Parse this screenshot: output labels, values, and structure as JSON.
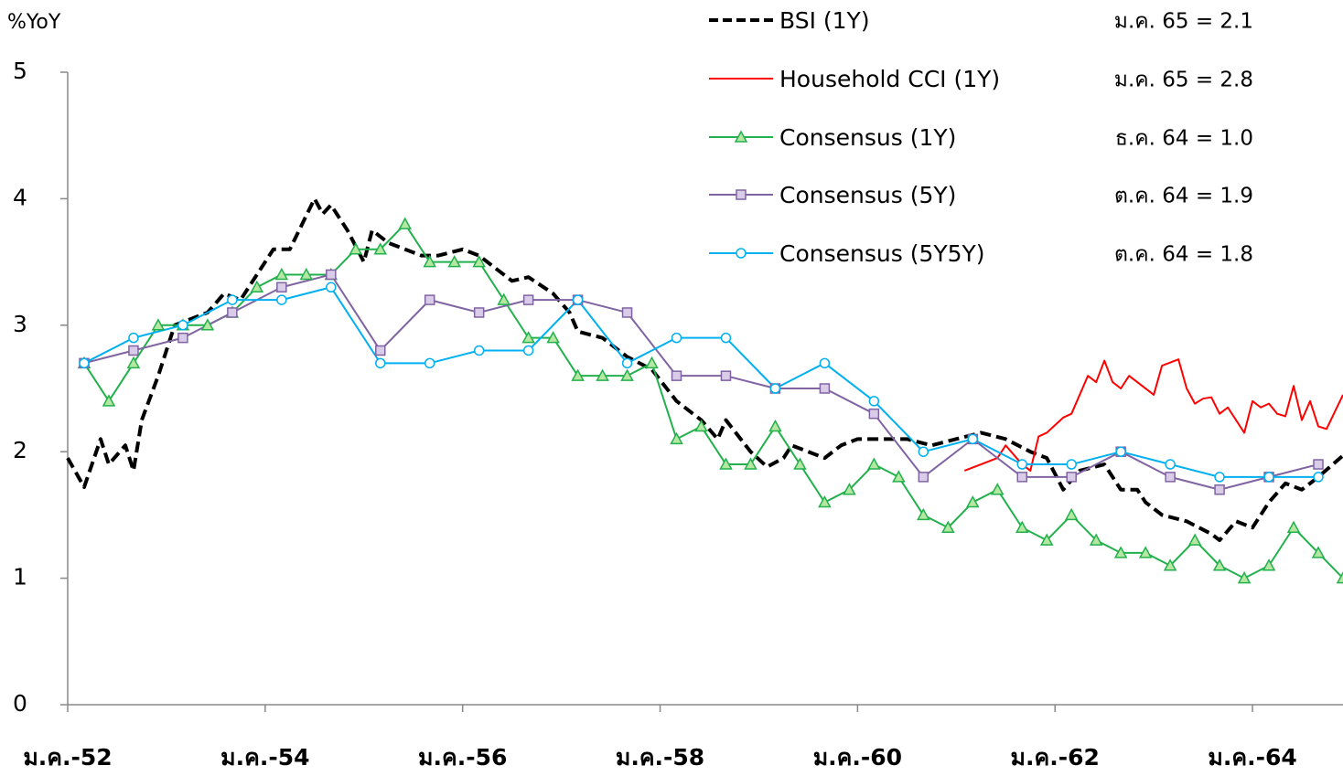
{
  "chart_data": {
    "type": "line",
    "y_axis_label": "%YoY",
    "xlim": [
      0,
      155
    ],
    "xticks": [
      {
        "value": 0,
        "label": "ม.ค.-52"
      },
      {
        "value": 24,
        "label": "ม.ค.-54"
      },
      {
        "value": 48,
        "label": "ม.ค.-56"
      },
      {
        "value": 72,
        "label": "ม.ค.-58"
      },
      {
        "value": 96,
        "label": "ม.ค.-60"
      },
      {
        "value": 120,
        "label": "ม.ค.-62"
      },
      {
        "value": 144,
        "label": "ม.ค.-64"
      }
    ],
    "ylim": [
      0,
      5
    ],
    "yticks": [
      0,
      1,
      2,
      3,
      4,
      5
    ],
    "grid": false,
    "legend": "top-right",
    "series": [
      {
        "name": "BSI (1Y)",
        "color": "#000000",
        "dash": true,
        "marker": "none",
        "annotation": "ม.ค. 65 = 2.1",
        "annotation_color": "#a0a0a0",
        "x": [
          0,
          2,
          4,
          5,
          7,
          8,
          9,
          11,
          13,
          17,
          19,
          21,
          23,
          25,
          27,
          30,
          31,
          32,
          34,
          36,
          37,
          39,
          41,
          43,
          45,
          48,
          50,
          52,
          54,
          56,
          59,
          61,
          62,
          65,
          68,
          71,
          74,
          77,
          79,
          80,
          83,
          85,
          87,
          88,
          90,
          92,
          94,
          96,
          99,
          102,
          105,
          108,
          111,
          114,
          117,
          119,
          121,
          123,
          126,
          128,
          130,
          131,
          133,
          136,
          139,
          140,
          142,
          144,
          146,
          148,
          150,
          152,
          155
        ],
        "values": [
          1.95,
          1.72,
          2.1,
          1.9,
          2.05,
          1.85,
          2.25,
          2.6,
          3.0,
          3.1,
          3.25,
          3.2,
          3.4,
          3.6,
          3.6,
          4.0,
          3.88,
          3.95,
          3.75,
          3.5,
          3.75,
          3.65,
          3.6,
          3.55,
          3.55,
          3.6,
          3.55,
          3.45,
          3.35,
          3.38,
          3.25,
          3.1,
          2.95,
          2.9,
          2.75,
          2.65,
          2.4,
          2.25,
          2.1,
          2.25,
          2.0,
          1.88,
          1.95,
          2.05,
          2.0,
          1.95,
          2.05,
          2.1,
          2.1,
          2.1,
          2.05,
          2.1,
          2.15,
          2.1,
          2.0,
          1.95,
          1.7,
          1.85,
          1.9,
          1.7,
          1.7,
          1.6,
          1.5,
          1.45,
          1.35,
          1.3,
          1.45,
          1.4,
          1.6,
          1.75,
          1.7,
          1.8,
          1.97
        ]
      },
      {
        "name": "Household CCI (1Y)",
        "color": "#ff0000",
        "dash": false,
        "marker": "none",
        "annotation": "ม.ค. 65 = 2.8",
        "annotation_color": "#ff0000",
        "x": [
          109,
          111,
          113,
          114,
          116,
          117,
          118,
          119,
          121,
          122,
          124,
          125,
          126,
          127,
          128,
          129,
          130,
          132,
          133,
          135,
          136,
          137,
          138,
          139,
          140,
          141,
          143,
          144,
          145,
          146,
          147,
          148,
          149,
          150,
          151,
          152,
          153,
          155
        ],
        "values": [
          1.85,
          1.9,
          1.95,
          2.05,
          1.9,
          1.85,
          2.12,
          2.15,
          2.27,
          2.3,
          2.6,
          2.55,
          2.72,
          2.55,
          2.5,
          2.6,
          2.55,
          2.45,
          2.68,
          2.73,
          2.5,
          2.38,
          2.42,
          2.43,
          2.3,
          2.35,
          2.15,
          2.4,
          2.35,
          2.38,
          2.3,
          2.28,
          2.52,
          2.25,
          2.4,
          2.2,
          2.18,
          2.45
        ]
      },
      {
        "name": "Consensus (1Y)",
        "color": "#22b14c",
        "marker_fill": "#b5e6a2",
        "dash": false,
        "marker": "triangle",
        "annotation": "ธ.ค. 64 = 1.0",
        "annotation_color": "#22b14c",
        "x": [
          2,
          5,
          8,
          11,
          14,
          17,
          20,
          23,
          26,
          29,
          32,
          35,
          38,
          41,
          44,
          47,
          50,
          53,
          56,
          59,
          62,
          65,
          68,
          71,
          74,
          77,
          80,
          83,
          86,
          89,
          92,
          95,
          98,
          101,
          104,
          107,
          110,
          113,
          116,
          119,
          122,
          125,
          128,
          131,
          134,
          137,
          140,
          143,
          146,
          149,
          152,
          155
        ],
        "values": [
          2.7,
          2.4,
          2.7,
          3.0,
          3.0,
          3.0,
          3.1,
          3.3,
          3.4,
          3.4,
          3.4,
          3.6,
          3.6,
          3.8,
          3.5,
          3.5,
          3.5,
          3.2,
          2.9,
          2.9,
          2.6,
          2.6,
          2.6,
          2.7,
          2.1,
          2.2,
          1.9,
          1.9,
          2.2,
          1.9,
          1.6,
          1.7,
          1.9,
          1.8,
          1.5,
          1.4,
          1.6,
          1.7,
          1.4,
          1.3,
          1.5,
          1.3,
          1.2,
          1.2,
          1.1,
          1.3,
          1.1,
          1.0,
          1.1,
          1.4,
          1.2,
          1.0
        ]
      },
      {
        "name": "Consensus (5Y)",
        "color": "#8064a2",
        "marker_fill": "#d9cce8",
        "dash": false,
        "marker": "square",
        "annotation": "ต.ค. 64 = 1.9",
        "annotation_color": "#7030a0",
        "x": [
          2,
          8,
          14,
          20,
          26,
          32,
          38,
          44,
          50,
          56,
          62,
          68,
          74,
          80,
          86,
          92,
          98,
          104,
          110,
          116,
          122,
          128,
          134,
          140,
          146,
          152
        ],
        "values": [
          2.7,
          2.8,
          2.9,
          3.1,
          3.3,
          3.4,
          2.8,
          3.2,
          3.1,
          3.2,
          3.2,
          3.1,
          2.6,
          2.6,
          2.5,
          2.5,
          2.3,
          1.8,
          2.1,
          1.8,
          1.8,
          2.0,
          1.8,
          1.7,
          1.8,
          1.9
        ]
      },
      {
        "name": "Consensus (5Y5Y)",
        "color": "#00b0f0",
        "marker_fill": "#ffffff",
        "dash": false,
        "marker": "circle",
        "annotation": "ต.ค. 64 = 1.8",
        "annotation_color": "#00b0f0",
        "x": [
          2,
          8,
          14,
          20,
          26,
          32,
          38,
          44,
          50,
          56,
          62,
          68,
          74,
          80,
          86,
          92,
          98,
          104,
          110,
          116,
          122,
          128,
          134,
          140,
          146,
          152
        ],
        "values": [
          2.7,
          2.9,
          3.0,
          3.2,
          3.2,
          3.3,
          2.7,
          2.7,
          2.8,
          2.8,
          3.2,
          2.7,
          2.9,
          2.9,
          2.5,
          2.7,
          2.4,
          2.0,
          2.1,
          1.9,
          1.9,
          2.0,
          1.9,
          1.8,
          1.8,
          1.8
        ]
      }
    ]
  }
}
